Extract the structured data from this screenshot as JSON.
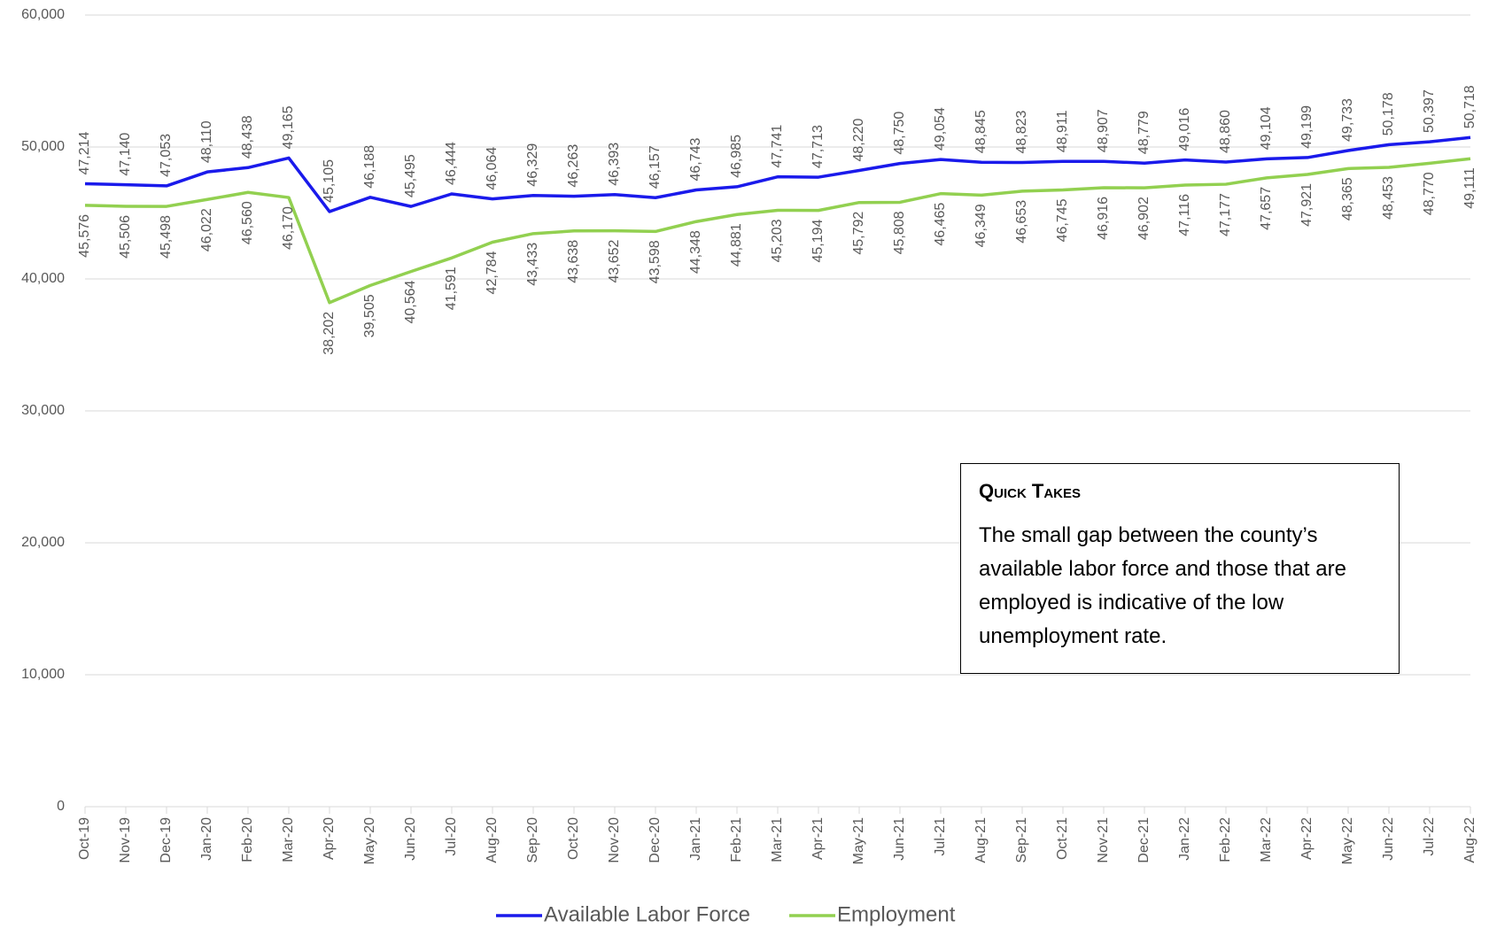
{
  "chart_data": {
    "type": "line",
    "categories": [
      "Oct-19",
      "Nov-19",
      "Dec-19",
      "Jan-20",
      "Feb-20",
      "Mar-20",
      "Apr-20",
      "May-20",
      "Jun-20",
      "Jul-20",
      "Aug-20",
      "Sep-20",
      "Oct-20",
      "Nov-20",
      "Dec-20",
      "Jan-21",
      "Feb-21",
      "Mar-21",
      "Apr-21",
      "May-21",
      "Jun-21",
      "Jul-21",
      "Aug-21",
      "Sep-21",
      "Oct-21",
      "Nov-21",
      "Dec-21",
      "Jan-22",
      "Feb-22",
      "Mar-22",
      "Apr-22",
      "May-22",
      "Jun-22",
      "Jul-22",
      "Aug-22"
    ],
    "series": [
      {
        "name": "Available Labor Force",
        "color": "#1a1aeb",
        "position": "above",
        "values": [
          47214,
          47140,
          47053,
          48110,
          48438,
          49165,
          45105,
          46188,
          45495,
          46444,
          46064,
          46329,
          46263,
          46393,
          46157,
          46743,
          46985,
          47741,
          47713,
          48220,
          48750,
          49054,
          48845,
          48823,
          48911,
          48907,
          48779,
          49016,
          48860,
          49104,
          49199,
          49733,
          50178,
          50397,
          50718
        ],
        "value_labels": [
          "47,214",
          "47,140",
          "47,053",
          "48,110",
          "48,438",
          "49,165",
          "45,105",
          "46,188",
          "45,495",
          "46,444",
          "46,064",
          "46,329",
          "46,263",
          "46,393",
          "46,157",
          "46,743",
          "46,985",
          "47,741",
          "47,713",
          "48,220",
          "48,750",
          "49,054",
          "48,845",
          "48,823",
          "48,911",
          "48,907",
          "48,779",
          "49,016",
          "48,860",
          "49,104",
          "49,199",
          "49,733",
          "50,178",
          "50,397",
          "50,718"
        ]
      },
      {
        "name": "Employment",
        "color": "#92d050",
        "position": "below",
        "values": [
          45576,
          45506,
          45498,
          46022,
          46560,
          46170,
          38202,
          39505,
          40564,
          41591,
          42784,
          43433,
          43638,
          43652,
          43598,
          44348,
          44881,
          45203,
          45194,
          45792,
          45808,
          46465,
          46349,
          46653,
          46745,
          46916,
          46902,
          47116,
          47177,
          47657,
          47921,
          48365,
          48453,
          48770,
          49111
        ],
        "value_labels": [
          "45,576",
          "45,506",
          "45,498",
          "46,022",
          "46,560",
          "46,170",
          "38,202",
          "39,505",
          "40,564",
          "41,591",
          "42,784",
          "43,433",
          "43,638",
          "43,652",
          "43,598",
          "44,348",
          "44,881",
          "45,203",
          "45,194",
          "45,792",
          "45,808",
          "46,465",
          "46,349",
          "46,653",
          "46,745",
          "46,916",
          "46,902",
          "47,116",
          "47,177",
          "47,657",
          "47,921",
          "48,365",
          "48,453",
          "48,770",
          "49,111"
        ]
      }
    ],
    "ylim": [
      0,
      60000
    ],
    "yticks": [
      0,
      {
        "value": 10000,
        "label": "10,000"
      },
      {
        "value": 20000,
        "label": "20,000"
      },
      {
        "value": 30000,
        "label": "30,000"
      },
      {
        "value": 40000,
        "label": "40,000"
      },
      {
        "value": 50000,
        "label": "50,000"
      },
      {
        "value": 60000,
        "label": "60,000"
      }
    ],
    "grid": true,
    "legend": "bottom",
    "annotation": {
      "title": "Quick Takes",
      "text": "The small gap between the county’s available labor force and those that are employed is indicative of the low unemployment rate."
    }
  }
}
